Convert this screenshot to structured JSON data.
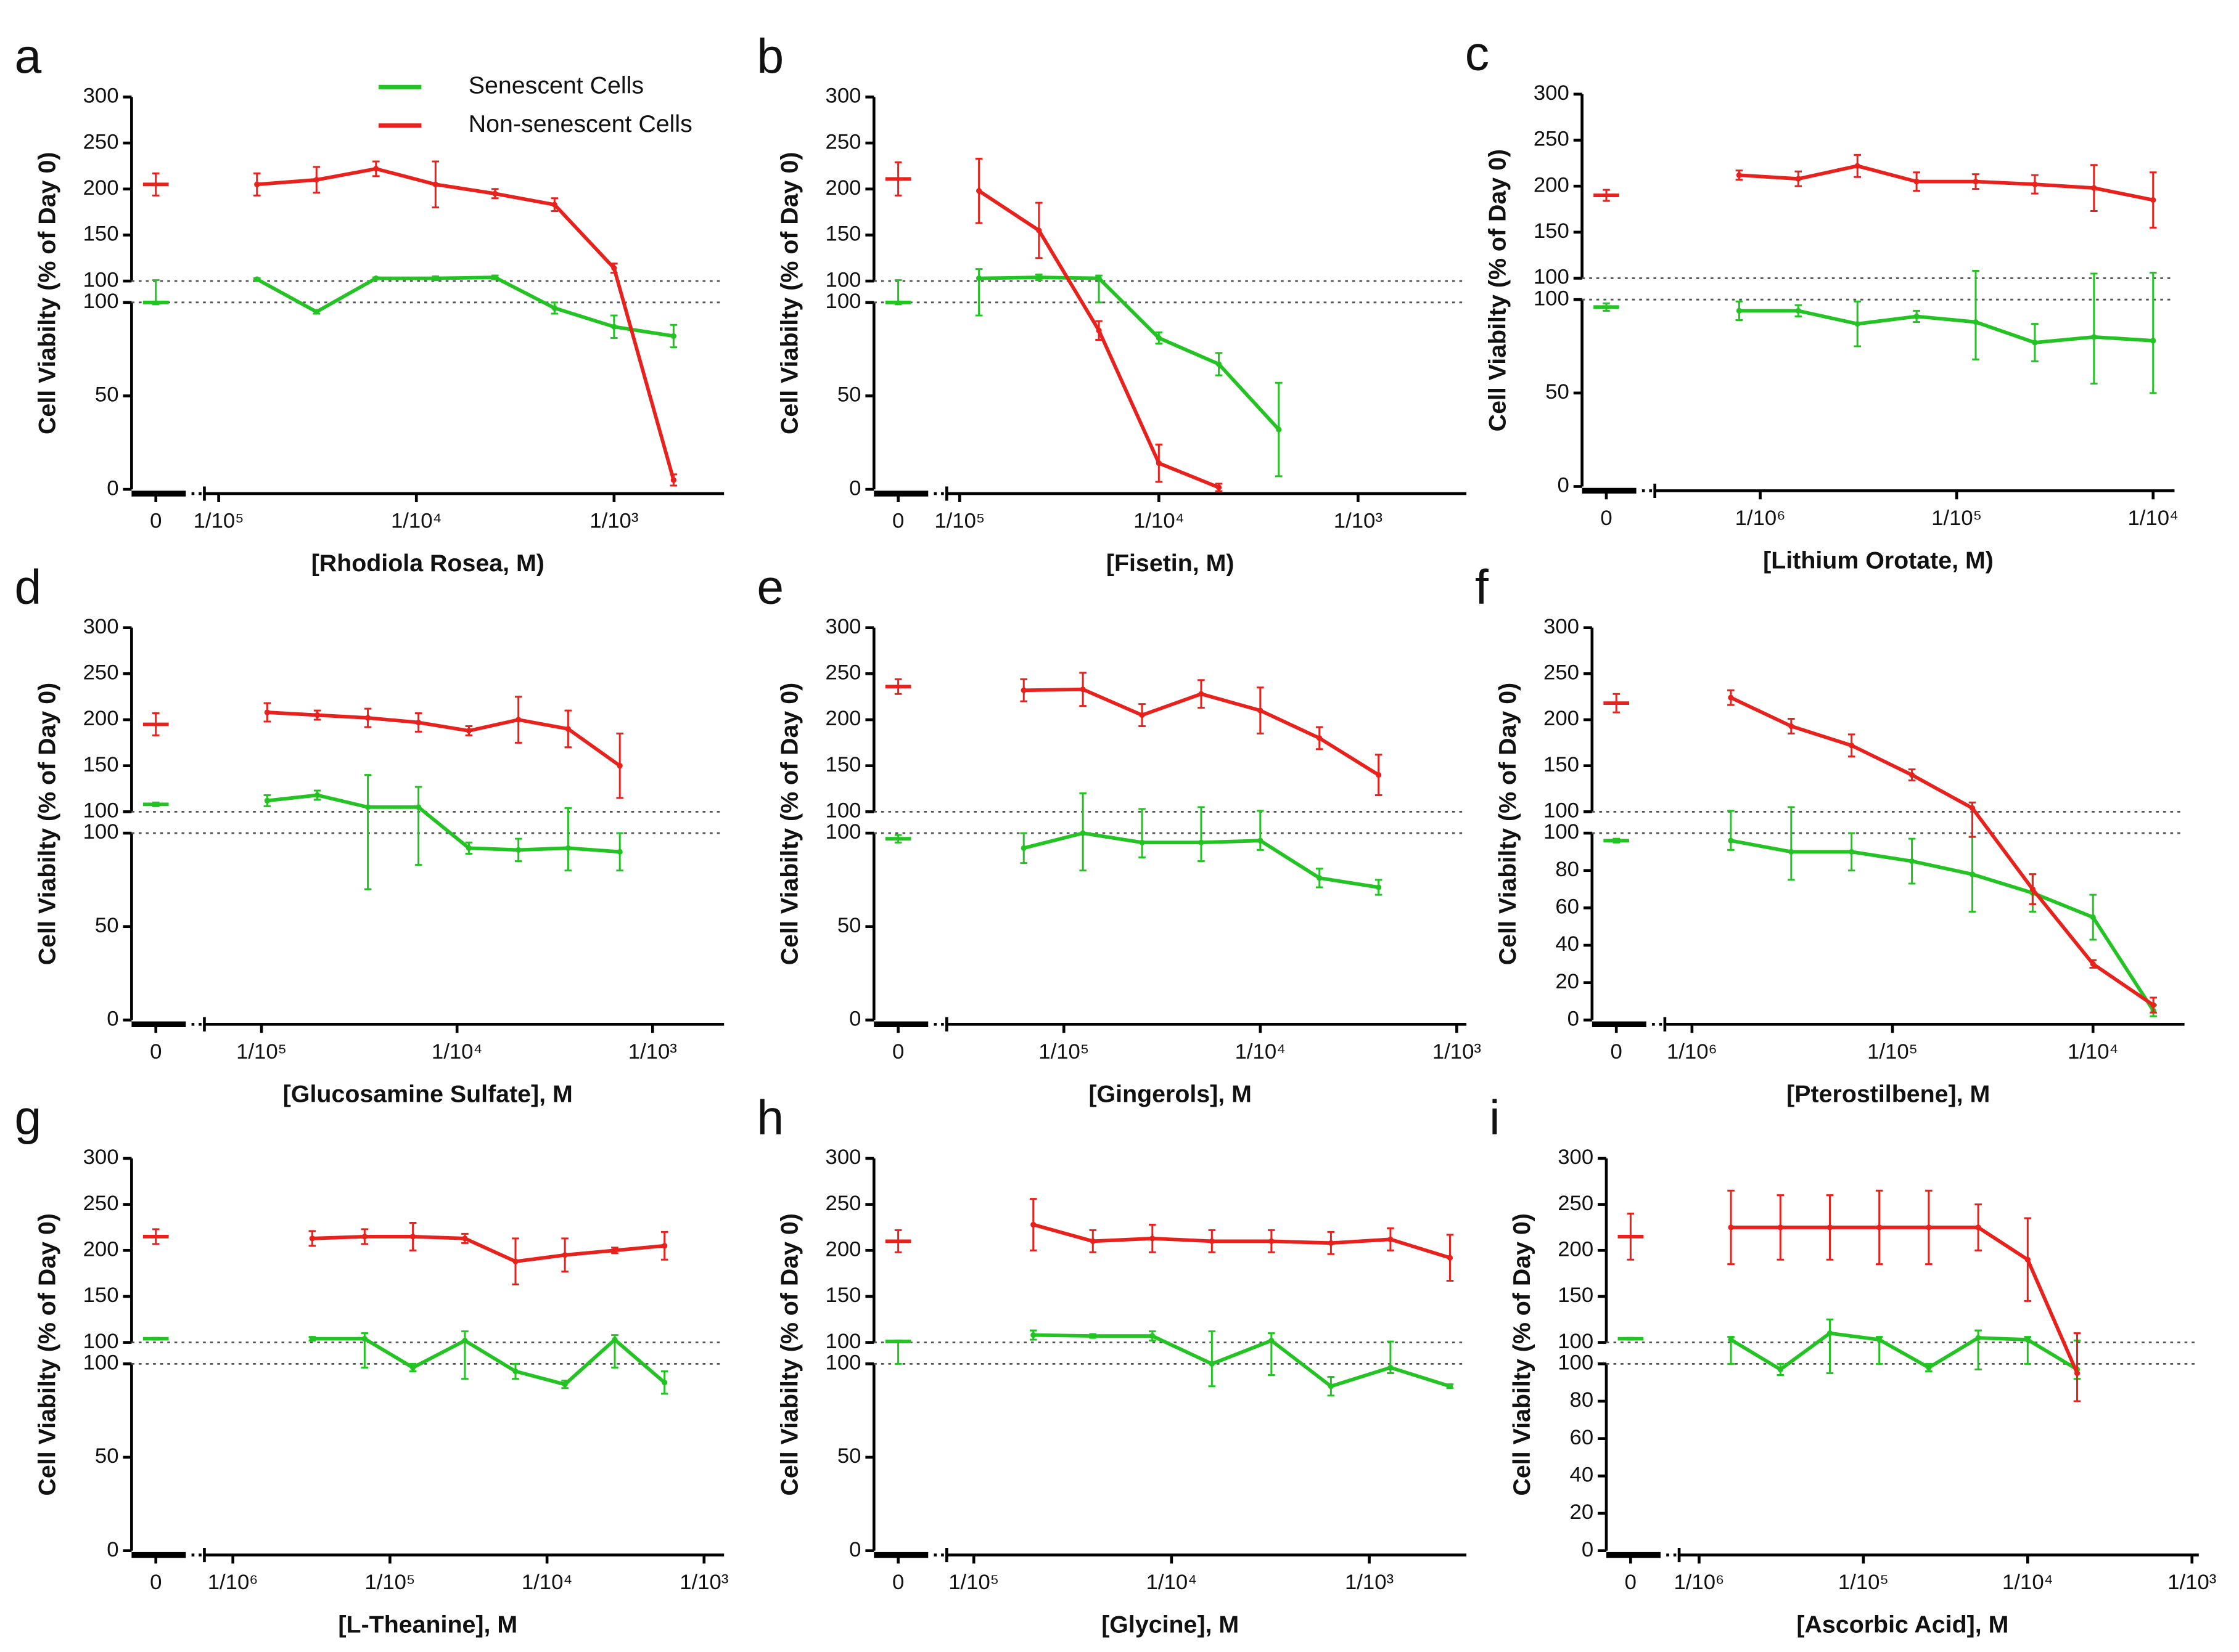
{
  "chart_data": [
    {
      "type": "line",
      "panel": "a",
      "xlabel": "[Rhodiola Rosea, M)",
      "ylabel": "Cell Viabilty (% of Day 0)",
      "xscale": "log",
      "legend": "top",
      "xlim": [
        9.05e-06,
        0.0036
      ],
      "xticks": [
        0,
        {
          "value": 1e-05,
          "label": "1/10⁵"
        },
        {
          "value": 0.0001,
          "label": "1/10⁴"
        },
        {
          "value": 0.001,
          "label": "1/10³"
        }
      ],
      "ylim": [
        0,
        100
      ],
      "yticks": [
        0,
        50,
        100
      ],
      "y2lim": [
        100,
        300
      ],
      "y2ticks": [
        100,
        150,
        200,
        250,
        300
      ],
      "x": [
        1.5625e-05,
        3.125e-05,
        6.25e-05,
        0.000125,
        0.00025,
        0.0005,
        0.001,
        0.002
      ],
      "series": [
        {
          "name": "Senescent Cells",
          "color": "#22c322",
          "control": 100,
          "control_error": 1,
          "values": [
            102,
            95,
            103,
            103,
            104,
            97,
            87,
            82
          ],
          "errors": [
            1,
            1,
            1,
            2,
            2,
            3,
            6,
            6
          ]
        },
        {
          "name": "Non-senescent Cells",
          "color": "#e8211c",
          "control": 205,
          "control_error": 12,
          "values": [
            205,
            210,
            222,
            205,
            195,
            183,
            114,
            5
          ],
          "errors": [
            12,
            14,
            8,
            25,
            5,
            7,
            5,
            3
          ]
        }
      ]
    },
    {
      "type": "line",
      "panel": "b",
      "xlabel": "[Fisetin, M)",
      "ylabel": "Cell Viabilty (% of Day 0)",
      "xscale": "log",
      "xlim": [
        9.2e-06,
        0.0035
      ],
      "xticks": [
        0,
        {
          "value": 1e-05,
          "label": "1/10⁵"
        },
        {
          "value": 0.0001,
          "label": "1/10⁴"
        },
        {
          "value": 0.001,
          "label": "1/10³"
        }
      ],
      "ylim": [
        0,
        100
      ],
      "yticks": [
        0,
        50,
        100
      ],
      "y2lim": [
        100,
        300
      ],
      "y2ticks": [
        100,
        150,
        200,
        250,
        300
      ],
      "x": [
        1.25e-05,
        2.5e-05,
        5e-05,
        0.0001,
        0.0002,
        0.0004
      ],
      "series": [
        {
          "color": "#22c322",
          "control": 100,
          "control_error": 1,
          "values": [
            103,
            104,
            103,
            81,
            67,
            32
          ],
          "errors": [
            10,
            3,
            3,
            3,
            6,
            25
          ]
        },
        {
          "color": "#e8211c",
          "control": 211,
          "control_error": 18,
          "values": [
            198,
            155,
            85,
            14,
            1,
            null
          ],
          "errors": [
            35,
            30,
            5,
            10,
            2,
            null
          ]
        }
      ]
    },
    {
      "type": "line",
      "panel": "c",
      "xlabel": "[Lithium Orotate, M)",
      "ylabel": "Cell Viabilty (% of Day 0)",
      "xscale": "log",
      "xlim": [
        3.11e-07,
        0.0001285
      ],
      "xticks": [
        0,
        {
          "value": 1e-06,
          "label": "1/10⁶"
        },
        {
          "value": 1e-05,
          "label": "1/10⁵"
        },
        {
          "value": 0.0001,
          "label": "1/10⁴"
        }
      ],
      "ylim": [
        0,
        100
      ],
      "yticks": [
        0,
        50,
        100
      ],
      "y2lim": [
        100,
        300
      ],
      "y2ticks": [
        100,
        150,
        200,
        250,
        300
      ],
      "x": [
        7.8125e-07,
        1.5625e-06,
        3.125e-06,
        6.25e-06,
        1.25e-05,
        2.5e-05,
        5e-05,
        0.0001
      ],
      "series": [
        {
          "color": "#22c322",
          "control": 96,
          "control_error": 2,
          "values": [
            94,
            94,
            87,
            91,
            88,
            77,
            80,
            78
          ],
          "errors": [
            5,
            3,
            12,
            3,
            20,
            10,
            25,
            28
          ]
        },
        {
          "color": "#e8211c",
          "control": 190,
          "control_error": 6,
          "values": [
            212,
            208,
            222,
            205,
            205,
            202,
            198,
            185
          ],
          "errors": [
            5,
            8,
            12,
            10,
            8,
            10,
            25,
            30
          ]
        }
      ]
    },
    {
      "type": "line",
      "panel": "d",
      "xlabel": "[Glucosamine Sulfate], M",
      "ylabel": "Cell Viabilty (% of Day 0)",
      "xscale": "log",
      "xlim": [
        5.46e-06,
        0.00232
      ],
      "xticks": [
        0,
        {
          "value": 1e-05,
          "label": "1/10⁵"
        },
        {
          "value": 0.0001,
          "label": "1/10⁴"
        },
        {
          "value": 0.001,
          "label": "1/10³"
        }
      ],
      "ylim": [
        0,
        100
      ],
      "yticks": [
        0,
        50,
        100
      ],
      "y2lim": [
        100,
        300
      ],
      "y2ticks": [
        100,
        150,
        200,
        250,
        300
      ],
      "x": [
        1.07e-05,
        1.93e-05,
        3.5e-05,
        6.35e-05,
        0.000115,
        0.000206,
        0.00037,
        0.00068
      ],
      "series": [
        {
          "color": "#22c322",
          "control": 108,
          "control_error": 2,
          "values": [
            112,
            118,
            105,
            105,
            92,
            91,
            92,
            90
          ],
          "errors": [
            6,
            5,
            35,
            22,
            3,
            6,
            12,
            10
          ]
        },
        {
          "color": "#e8211c",
          "control": 195,
          "control_error": 12,
          "values": [
            208,
            205,
            202,
            197,
            188,
            200,
            190,
            150
          ],
          "errors": [
            10,
            5,
            10,
            10,
            5,
            25,
            20,
            35
          ]
        }
      ]
    },
    {
      "type": "line",
      "panel": "e",
      "xlabel": "[Gingerols], M",
      "ylabel": "Cell Viabilty (% of Day 0)",
      "xscale": "log",
      "xlim": [
        2.71e-06,
        0.00112
      ],
      "xticks": [
        0,
        {
          "value": 1e-05,
          "label": "1/10⁵"
        },
        {
          "value": 0.0001,
          "label": "1/10⁴"
        },
        {
          "value": 0.001,
          "label": "1/10³"
        }
      ],
      "ylim": [
        0,
        100
      ],
      "yticks": [
        0,
        50,
        100
      ],
      "y2lim": [
        100,
        300
      ],
      "y2ticks": [
        100,
        150,
        200,
        250,
        300
      ],
      "x": [
        6.25e-06,
        1.25e-05,
        2.5e-05,
        5e-05,
        0.0001,
        0.0002,
        0.0004
      ],
      "series": [
        {
          "color": "#22c322",
          "control": 97,
          "control_error": 2,
          "values": [
            92,
            100,
            95,
            95,
            96,
            76,
            71
          ],
          "errors": [
            8,
            20,
            8,
            10,
            5,
            5,
            4
          ]
        },
        {
          "color": "#e8211c",
          "control": 236,
          "control_error": 8,
          "values": [
            232,
            233,
            205,
            228,
            210,
            180,
            140
          ],
          "errors": [
            12,
            18,
            12,
            15,
            25,
            12,
            22
          ]
        }
      ]
    },
    {
      "type": "line",
      "panel": "f",
      "xlabel": "[Pterostilbene], M",
      "ylabel": "Cell Viabilty (% of Day 0)",
      "xscale": "log",
      "xlim": [
        7.82e-07,
        0.000286
      ],
      "xticks": [
        0,
        {
          "value": 1e-06,
          "label": "1/10⁶"
        },
        {
          "value": 1e-05,
          "label": "1/10⁵"
        },
        {
          "value": 0.0001,
          "label": "1/10⁴"
        }
      ],
      "ylim": [
        0,
        100
      ],
      "yticks": [
        0,
        20,
        40,
        60,
        80,
        100
      ],
      "y2lim": [
        100,
        300
      ],
      "y2ticks": [
        100,
        150,
        200,
        250,
        300
      ],
      "x": [
        1.5625e-06,
        3.125e-06,
        6.25e-06,
        1.25e-05,
        2.5e-05,
        5e-05,
        0.0001,
        0.0002
      ],
      "series": [
        {
          "color": "#22c322",
          "control": 96,
          "control_error": 1,
          "values": [
            96,
            90,
            90,
            85,
            78,
            68,
            55,
            5
          ],
          "errors": [
            5,
            15,
            10,
            12,
            20,
            10,
            12,
            3
          ]
        },
        {
          "color": "#e8211c",
          "control": 218,
          "control_error": 10,
          "values": [
            224,
            193,
            172,
            140,
            104,
            70,
            30,
            8
          ],
          "errors": [
            8,
            8,
            12,
            6,
            6,
            8,
            2,
            4
          ]
        }
      ]
    },
    {
      "type": "line",
      "panel": "g",
      "xlabel": "[L-Theanine], M",
      "ylabel": "Cell Viabilty (% of Day 0)",
      "xscale": "log",
      "xlim": [
        7.16e-07,
        0.00134
      ],
      "xticks": [
        0,
        {
          "value": 1e-06,
          "label": "1/10⁶"
        },
        {
          "value": 1e-05,
          "label": "1/10⁵"
        },
        {
          "value": 0.0001,
          "label": "1/10⁴"
        },
        {
          "value": 0.001,
          "label": "1/10³"
        }
      ],
      "ylim": [
        0,
        100
      ],
      "yticks": [
        0,
        50,
        100
      ],
      "y2lim": [
        100,
        300
      ],
      "y2ticks": [
        100,
        150,
        200,
        250,
        300
      ],
      "x": [
        3.2e-06,
        6.9e-06,
        1.4e-05,
        3e-05,
        6.3e-05,
        0.00013,
        0.00027,
        0.00056
      ],
      "series": [
        {
          "color": "#22c322",
          "control": 104,
          "control_error": 1,
          "values": [
            104,
            104,
            98,
            102,
            96,
            89,
            103,
            90
          ],
          "errors": [
            2,
            6,
            2,
            10,
            4,
            2,
            5,
            6
          ]
        },
        {
          "color": "#e8211c",
          "control": 215,
          "control_error": 8,
          "values": [
            213,
            215,
            215,
            213,
            188,
            195,
            200,
            205
          ],
          "errors": [
            8,
            8,
            15,
            5,
            25,
            18,
            3,
            15
          ]
        }
      ]
    },
    {
      "type": "line",
      "panel": "h",
      "xlabel": "[Glycine], M",
      "ylabel": "Cell Viabilty (% of Day 0)",
      "xscale": "log",
      "xlim": [
        7.8e-06,
        0.0031
      ],
      "xticks": [
        0,
        {
          "value": 1e-05,
          "label": "1/10⁵"
        },
        {
          "value": 0.0001,
          "label": "1/10⁴"
        },
        {
          "value": 0.001,
          "label": "1/10³"
        }
      ],
      "ylim": [
        0,
        100
      ],
      "yticks": [
        0,
        50,
        100
      ],
      "y2lim": [
        100,
        300
      ],
      "y2ticks": [
        100,
        150,
        200,
        250,
        300
      ],
      "x": [
        2e-05,
        4e-05,
        8e-05,
        0.00016,
        0.00032,
        0.00064,
        0.00128,
        0.00256
      ],
      "series": [
        {
          "color": "#22c322",
          "control": 101,
          "control_error": 1,
          "values": [
            108,
            107,
            107,
            100,
            102,
            88,
            98,
            88
          ],
          "errors": [
            5,
            2,
            5,
            12,
            8,
            5,
            3,
            1
          ]
        },
        {
          "color": "#e8211c",
          "control": 210,
          "control_error": 12,
          "values": [
            228,
            210,
            213,
            210,
            210,
            208,
            212,
            192
          ],
          "errors": [
            28,
            12,
            15,
            12,
            12,
            12,
            12,
            25
          ]
        }
      ]
    },
    {
      "type": "line",
      "panel": "i",
      "xlabel": "[Ascorbic Acid], M",
      "ylabel": "Cell Viabilty (% of Day 0)",
      "xscale": "log",
      "xlim": [
        8.19e-07,
        0.0011
      ],
      "xticks": [
        0,
        {
          "value": 1e-06,
          "label": "1/10⁶"
        },
        {
          "value": 1e-05,
          "label": "1/10⁵"
        },
        {
          "value": 0.0001,
          "label": "1/10⁴"
        },
        {
          "value": 0.001,
          "label": "1/10³"
        }
      ],
      "ylim": [
        0,
        100
      ],
      "yticks": [
        0,
        20,
        40,
        60,
        80,
        100
      ],
      "y2lim": [
        100,
        300
      ],
      "y2ticks": [
        100,
        150,
        200,
        250,
        300
      ],
      "x": [
        1.5625e-06,
        3.125e-06,
        6.25e-06,
        1.25e-05,
        2.5e-05,
        5e-05,
        0.0001,
        0.0002
      ],
      "series": [
        {
          "color": "#22c322",
          "control": 104,
          "control_error": 1,
          "values": [
            103,
            97,
            110,
            103,
            98,
            105,
            103,
            97
          ],
          "errors": [
            3,
            3,
            15,
            3,
            2,
            8,
            3,
            5
          ]
        },
        {
          "color": "#e8211c",
          "control": 215,
          "control_error": 25,
          "values": [
            225,
            225,
            225,
            225,
            225,
            225,
            190,
            95
          ],
          "errors": [
            40,
            35,
            35,
            40,
            40,
            25,
            45,
            15
          ]
        }
      ]
    }
  ]
}
